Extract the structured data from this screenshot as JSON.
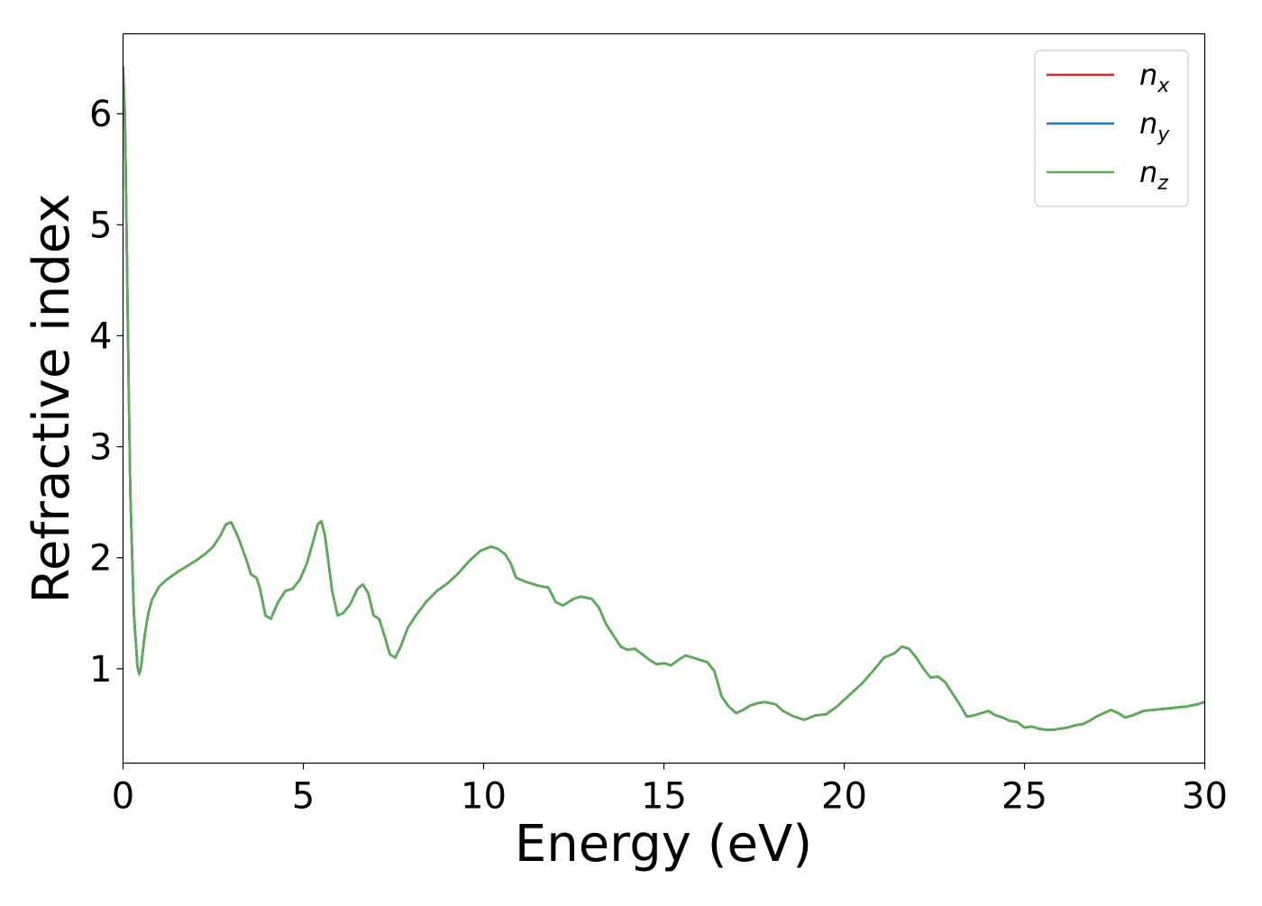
{
  "chart_data": {
    "type": "line",
    "xlabel": "Energy (eV)",
    "ylabel": "Refractive index",
    "xlim": [
      0,
      30
    ],
    "ylim": [
      0.15,
      6.72
    ],
    "xticks": [
      0,
      5,
      10,
      15,
      20,
      25,
      30
    ],
    "xtick_labels": [
      "0",
      "5",
      "10",
      "15",
      "20",
      "25",
      "30"
    ],
    "yticks": [
      1,
      2,
      3,
      4,
      5,
      6
    ],
    "ytick_labels": [
      "1",
      "2",
      "3",
      "4",
      "5",
      "6"
    ],
    "grid": false,
    "legend_position": "top-right",
    "x": [
      0.0,
      0.05,
      0.1,
      0.15,
      0.2,
      0.3,
      0.4,
      0.45,
      0.5,
      0.6,
      0.7,
      0.8,
      1.0,
      1.2,
      1.5,
      1.8,
      2.0,
      2.3,
      2.5,
      2.7,
      2.85,
      3.0,
      3.2,
      3.4,
      3.55,
      3.7,
      3.8,
      3.95,
      4.1,
      4.3,
      4.5,
      4.7,
      4.9,
      5.1,
      5.3,
      5.4,
      5.5,
      5.6,
      5.7,
      5.8,
      5.95,
      6.1,
      6.3,
      6.5,
      6.65,
      6.8,
      6.95,
      7.1,
      7.25,
      7.4,
      7.55,
      7.7,
      7.9,
      8.1,
      8.4,
      8.7,
      9.0,
      9.3,
      9.6,
      9.9,
      10.2,
      10.4,
      10.6,
      10.75,
      10.9,
      11.2,
      11.5,
      11.8,
      12.0,
      12.2,
      12.5,
      12.7,
      13.0,
      13.2,
      13.4,
      13.6,
      13.8,
      14.0,
      14.2,
      14.4,
      14.6,
      14.8,
      15.0,
      15.2,
      15.4,
      15.6,
      15.8,
      16.0,
      16.2,
      16.4,
      16.6,
      16.8,
      17.0,
      17.2,
      17.4,
      17.6,
      17.8,
      18.1,
      18.3,
      18.6,
      18.9,
      19.2,
      19.5,
      19.8,
      20.0,
      20.2,
      20.5,
      20.8,
      21.1,
      21.4,
      21.6,
      21.8,
      22.0,
      22.2,
      22.4,
      22.6,
      22.8,
      23.0,
      23.2,
      23.4,
      23.6,
      23.8,
      24.0,
      24.2,
      24.4,
      24.6,
      24.8,
      25.0,
      25.2,
      25.4,
      25.6,
      25.8,
      26.0,
      26.2,
      26.4,
      26.6,
      26.8,
      27.0,
      27.2,
      27.4,
      27.6,
      27.8,
      28.0,
      28.3,
      28.6,
      28.9,
      29.2,
      29.5,
      29.8,
      30.0
    ],
    "series": [
      {
        "name": "n_x",
        "color": "#d62728",
        "y": [
          6.42,
          6.0,
          4.9,
          3.7,
          2.6,
          1.5,
          1.02,
          0.95,
          1.02,
          1.3,
          1.5,
          1.62,
          1.74,
          1.8,
          1.87,
          1.93,
          1.97,
          2.04,
          2.1,
          2.2,
          2.3,
          2.32,
          2.18,
          2.0,
          1.85,
          1.82,
          1.72,
          1.48,
          1.45,
          1.6,
          1.7,
          1.72,
          1.8,
          1.95,
          2.18,
          2.3,
          2.33,
          2.2,
          1.95,
          1.7,
          1.48,
          1.5,
          1.58,
          1.72,
          1.76,
          1.68,
          1.48,
          1.45,
          1.3,
          1.13,
          1.1,
          1.2,
          1.37,
          1.47,
          1.6,
          1.7,
          1.77,
          1.86,
          1.97,
          2.06,
          2.1,
          2.08,
          2.03,
          1.95,
          1.82,
          1.78,
          1.75,
          1.73,
          1.6,
          1.57,
          1.63,
          1.65,
          1.63,
          1.55,
          1.4,
          1.3,
          1.2,
          1.17,
          1.18,
          1.13,
          1.08,
          1.04,
          1.05,
          1.03,
          1.08,
          1.12,
          1.1,
          1.08,
          1.06,
          0.98,
          0.75,
          0.66,
          0.6,
          0.63,
          0.67,
          0.69,
          0.7,
          0.68,
          0.62,
          0.57,
          0.54,
          0.58,
          0.59,
          0.66,
          0.72,
          0.78,
          0.87,
          0.98,
          1.1,
          1.14,
          1.2,
          1.18,
          1.1,
          1.0,
          0.92,
          0.93,
          0.88,
          0.78,
          0.68,
          0.57,
          0.58,
          0.6,
          0.62,
          0.58,
          0.56,
          0.53,
          0.52,
          0.47,
          0.48,
          0.46,
          0.45,
          0.45,
          0.46,
          0.47,
          0.49,
          0.5,
          0.53,
          0.57,
          0.6,
          0.63,
          0.6,
          0.56,
          0.58,
          0.62,
          0.63,
          0.64,
          0.65,
          0.66,
          0.68,
          0.7
        ]
      },
      {
        "name": "n_y",
        "color": "#1f77b4",
        "y": [
          6.42,
          6.0,
          4.9,
          3.7,
          2.6,
          1.5,
          1.02,
          0.95,
          1.02,
          1.3,
          1.5,
          1.62,
          1.74,
          1.8,
          1.87,
          1.93,
          1.97,
          2.04,
          2.1,
          2.2,
          2.3,
          2.32,
          2.18,
          2.0,
          1.85,
          1.82,
          1.72,
          1.48,
          1.45,
          1.6,
          1.7,
          1.72,
          1.8,
          1.95,
          2.18,
          2.3,
          2.33,
          2.2,
          1.95,
          1.7,
          1.48,
          1.5,
          1.58,
          1.72,
          1.76,
          1.68,
          1.48,
          1.45,
          1.3,
          1.13,
          1.1,
          1.2,
          1.37,
          1.47,
          1.6,
          1.7,
          1.77,
          1.86,
          1.97,
          2.06,
          2.1,
          2.08,
          2.03,
          1.95,
          1.82,
          1.78,
          1.75,
          1.73,
          1.6,
          1.57,
          1.63,
          1.65,
          1.63,
          1.55,
          1.4,
          1.3,
          1.2,
          1.17,
          1.18,
          1.13,
          1.08,
          1.04,
          1.05,
          1.03,
          1.08,
          1.12,
          1.1,
          1.08,
          1.06,
          0.98,
          0.75,
          0.66,
          0.6,
          0.63,
          0.67,
          0.69,
          0.7,
          0.68,
          0.62,
          0.57,
          0.54,
          0.58,
          0.59,
          0.66,
          0.72,
          0.78,
          0.87,
          0.98,
          1.1,
          1.14,
          1.2,
          1.18,
          1.1,
          1.0,
          0.92,
          0.93,
          0.88,
          0.78,
          0.68,
          0.57,
          0.58,
          0.6,
          0.62,
          0.58,
          0.56,
          0.53,
          0.52,
          0.47,
          0.48,
          0.46,
          0.45,
          0.45,
          0.46,
          0.47,
          0.49,
          0.5,
          0.53,
          0.57,
          0.6,
          0.63,
          0.6,
          0.56,
          0.58,
          0.62,
          0.63,
          0.64,
          0.65,
          0.66,
          0.68,
          0.7
        ]
      },
      {
        "name": "n_z",
        "color": "#5aae52",
        "y": [
          6.42,
          6.0,
          4.9,
          3.7,
          2.6,
          1.5,
          1.02,
          0.95,
          1.02,
          1.3,
          1.5,
          1.62,
          1.74,
          1.8,
          1.87,
          1.93,
          1.97,
          2.04,
          2.1,
          2.2,
          2.3,
          2.32,
          2.18,
          2.0,
          1.85,
          1.82,
          1.72,
          1.48,
          1.45,
          1.6,
          1.7,
          1.72,
          1.8,
          1.95,
          2.18,
          2.3,
          2.33,
          2.2,
          1.95,
          1.7,
          1.48,
          1.5,
          1.58,
          1.72,
          1.76,
          1.68,
          1.48,
          1.45,
          1.3,
          1.13,
          1.1,
          1.2,
          1.37,
          1.47,
          1.6,
          1.7,
          1.77,
          1.86,
          1.97,
          2.06,
          2.1,
          2.08,
          2.03,
          1.95,
          1.82,
          1.78,
          1.75,
          1.73,
          1.6,
          1.57,
          1.63,
          1.65,
          1.63,
          1.55,
          1.4,
          1.3,
          1.2,
          1.17,
          1.18,
          1.13,
          1.08,
          1.04,
          1.05,
          1.03,
          1.08,
          1.12,
          1.1,
          1.08,
          1.06,
          0.98,
          0.75,
          0.66,
          0.6,
          0.63,
          0.67,
          0.69,
          0.7,
          0.68,
          0.62,
          0.57,
          0.54,
          0.58,
          0.59,
          0.66,
          0.72,
          0.78,
          0.87,
          0.98,
          1.1,
          1.14,
          1.2,
          1.18,
          1.1,
          1.0,
          0.92,
          0.93,
          0.88,
          0.78,
          0.68,
          0.57,
          0.58,
          0.6,
          0.62,
          0.58,
          0.56,
          0.53,
          0.52,
          0.47,
          0.48,
          0.46,
          0.45,
          0.45,
          0.46,
          0.47,
          0.49,
          0.5,
          0.53,
          0.57,
          0.6,
          0.63,
          0.6,
          0.56,
          0.58,
          0.62,
          0.63,
          0.64,
          0.65,
          0.66,
          0.68,
          0.7
        ]
      }
    ],
    "legend": [
      {
        "base": "n",
        "sub": "x",
        "color": "#d62728"
      },
      {
        "base": "n",
        "sub": "y",
        "color": "#1f77b4"
      },
      {
        "base": "n",
        "sub": "z",
        "color": "#5aae52"
      }
    ]
  }
}
